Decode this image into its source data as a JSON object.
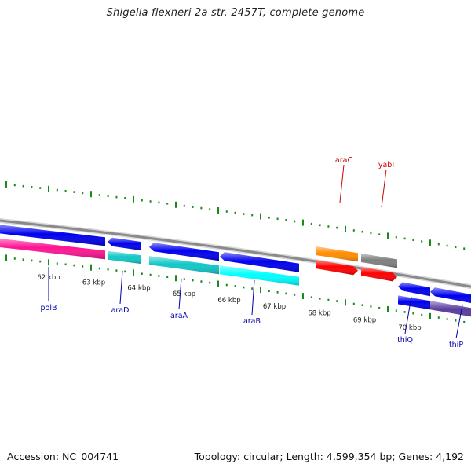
{
  "title": "Shigella flexneri 2a str. 2457T, complete genome",
  "footer": {
    "accession": "Accession: NC_004741",
    "summary": "Topology: circular; Length: 4,599,354 bp; Genes: 4,192"
  },
  "colors": {
    "backbone": "#8a8a8a",
    "ticks": "#1a8a1a",
    "forward_label": "#cc0000",
    "reverse_label": "#0000aa"
  },
  "kbp_labels": [
    "62 kbp",
    "63 kbp",
    "64 kbp",
    "65 kbp",
    "66 kbp",
    "67 kbp",
    "68 kbp",
    "69 kbp",
    "70 kbp"
  ],
  "labels": {
    "forward": [
      {
        "name": "araC",
        "color": "#cc0000"
      },
      {
        "name": "yabI",
        "color": "#cc0000"
      }
    ],
    "reverse": [
      {
        "name": "polB",
        "color": "#0000aa"
      },
      {
        "name": "araD",
        "color": "#0000aa"
      },
      {
        "name": "araA",
        "color": "#0000aa"
      },
      {
        "name": "araB",
        "color": "#0000aa"
      },
      {
        "name": "thiQ",
        "color": "#0000aa"
      },
      {
        "name": "thiP",
        "color": "#0000aa"
      }
    ]
  },
  "genes": [
    {
      "name": "polB",
      "strand": "-",
      "gene_color": "#0000ee",
      "feature_color": "#ff1493"
    },
    {
      "name": "araD",
      "strand": "-",
      "gene_color": "#0000ee",
      "feature_color": "#10c8c8"
    },
    {
      "name": "araA",
      "strand": "-",
      "gene_color": "#0000ee",
      "feature_color": "#10c8c8"
    },
    {
      "name": "araB",
      "strand": "-",
      "gene_color": "#0000ee",
      "feature_color": "#00ffff"
    },
    {
      "name": "araC",
      "strand": "+",
      "gene_color": "#ff0000",
      "feature_color": "#ff8c00"
    },
    {
      "name": "yabI",
      "strand": "+",
      "gene_color": "#ff0000",
      "feature_color": "#808080"
    },
    {
      "name": "thiQ",
      "strand": "-",
      "gene_color": "#0000ee",
      "feature_color": "#0000ee"
    },
    {
      "name": "thiP",
      "strand": "-",
      "gene_color": "#0000ee",
      "feature_color": "#5a3d9e"
    }
  ]
}
